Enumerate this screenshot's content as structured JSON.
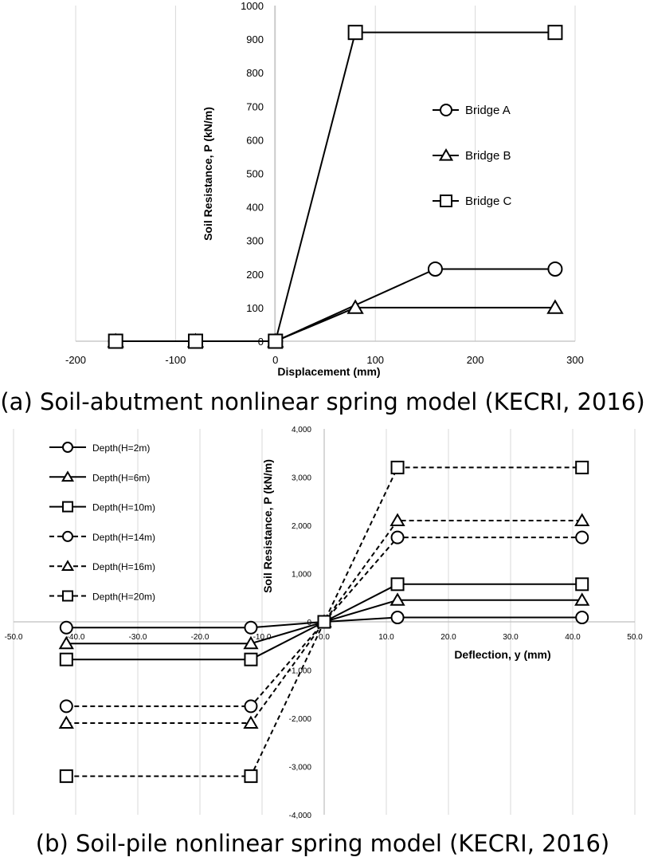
{
  "captions": {
    "a": "(a) Soil-abutment nonlinear spring model (KECRI, 2016)",
    "b": "(b) Soil-pile nonlinear spring model (KECRI, 2016)"
  },
  "chart_data": [
    {
      "type": "line",
      "title": "",
      "xlabel": "Displacement (mm)",
      "ylabel": "Soil Resistance, P (kN/m)",
      "xlim": [
        -200,
        300
      ],
      "ylim": [
        0,
        1000
      ],
      "xticks": [
        -200,
        -100,
        0,
        100,
        200,
        300
      ],
      "yticks": [
        0,
        100,
        200,
        300,
        400,
        500,
        600,
        700,
        800,
        900,
        1000
      ],
      "xtick_labels": [
        "-200",
        "-100",
        "0",
        "100",
        "200",
        "300"
      ],
      "ytick_labels": [
        "0",
        "100",
        "200",
        "300",
        "400",
        "500",
        "600",
        "700",
        "800",
        "900",
        "1000"
      ],
      "grid": "vertical",
      "legend_position": "right",
      "series": [
        {
          "name": "Bridge A",
          "marker": "circle",
          "dash": "solid",
          "x": [
            -160,
            -80,
            0,
            160,
            280
          ],
          "y": [
            0,
            0,
            0,
            215,
            215
          ]
        },
        {
          "name": "Bridge B",
          "marker": "triangle",
          "dash": "solid",
          "x": [
            -160,
            -80,
            0,
            80,
            280
          ],
          "y": [
            0,
            0,
            0,
            100,
            100
          ]
        },
        {
          "name": "Bridge C",
          "marker": "square",
          "dash": "solid",
          "x": [
            -160,
            -80,
            0,
            80,
            280
          ],
          "y": [
            0,
            0,
            0,
            920,
            920
          ]
        }
      ]
    },
    {
      "type": "line",
      "title": "",
      "xlabel": "Deflection, y (mm)",
      "ylabel": "Soil Resistance, P (kN/m)",
      "xlim": [
        -50,
        50
      ],
      "ylim": [
        -4000,
        4000
      ],
      "xticks": [
        -50,
        -40,
        -30,
        -20,
        -10,
        0,
        10,
        20,
        30,
        40,
        50
      ],
      "yticks": [
        -4000,
        -3000,
        -2000,
        -1000,
        0,
        1000,
        2000,
        3000,
        4000
      ],
      "xtick_labels": [
        "-50.0",
        "-40.0",
        "-30.0",
        "-20.0",
        "-10.0",
        "0.0",
        "10.0",
        "20.0",
        "30.0",
        "40.0",
        "50.0"
      ],
      "ytick_labels": [
        "-4,000",
        "-3,000",
        "-2,000",
        "-1,000",
        "0",
        "1,000",
        "2,000",
        "3,000",
        "4,000"
      ],
      "grid": "vertical",
      "legend_position": "top-left",
      "series": [
        {
          "name": "Depth(H=2m)",
          "marker": "circle",
          "dash": "solid",
          "x": [
            -41.5,
            -11.8,
            0,
            11.8,
            41.5
          ],
          "y": [
            -120,
            -120,
            0,
            90,
            90
          ]
        },
        {
          "name": "Depth(H=6m)",
          "marker": "triangle",
          "dash": "solid",
          "x": [
            -41.5,
            -11.8,
            0,
            11.8,
            41.5
          ],
          "y": [
            -450,
            -450,
            0,
            450,
            450
          ]
        },
        {
          "name": "Depth(H=10m)",
          "marker": "square",
          "dash": "solid",
          "x": [
            -41.5,
            -11.8,
            0,
            11.8,
            41.5
          ],
          "y": [
            -780,
            -780,
            0,
            780,
            780
          ]
        },
        {
          "name": "Depth(H=14m)",
          "marker": "circle",
          "dash": "dashed",
          "x": [
            -41.5,
            -11.8,
            0,
            11.8,
            41.5
          ],
          "y": [
            -1750,
            -1750,
            0,
            1750,
            1750
          ]
        },
        {
          "name": "Depth(H=16m)",
          "marker": "triangle",
          "dash": "dashed",
          "x": [
            -41.5,
            -11.8,
            0,
            11.8,
            41.5
          ],
          "y": [
            -2100,
            -2100,
            0,
            2100,
            2100
          ]
        },
        {
          "name": "Depth(H=20m)",
          "marker": "square",
          "dash": "dashed",
          "x": [
            -41.5,
            -11.8,
            0,
            11.8,
            41.5
          ],
          "y": [
            -3200,
            -3200,
            0,
            3200,
            3200
          ]
        }
      ]
    }
  ]
}
